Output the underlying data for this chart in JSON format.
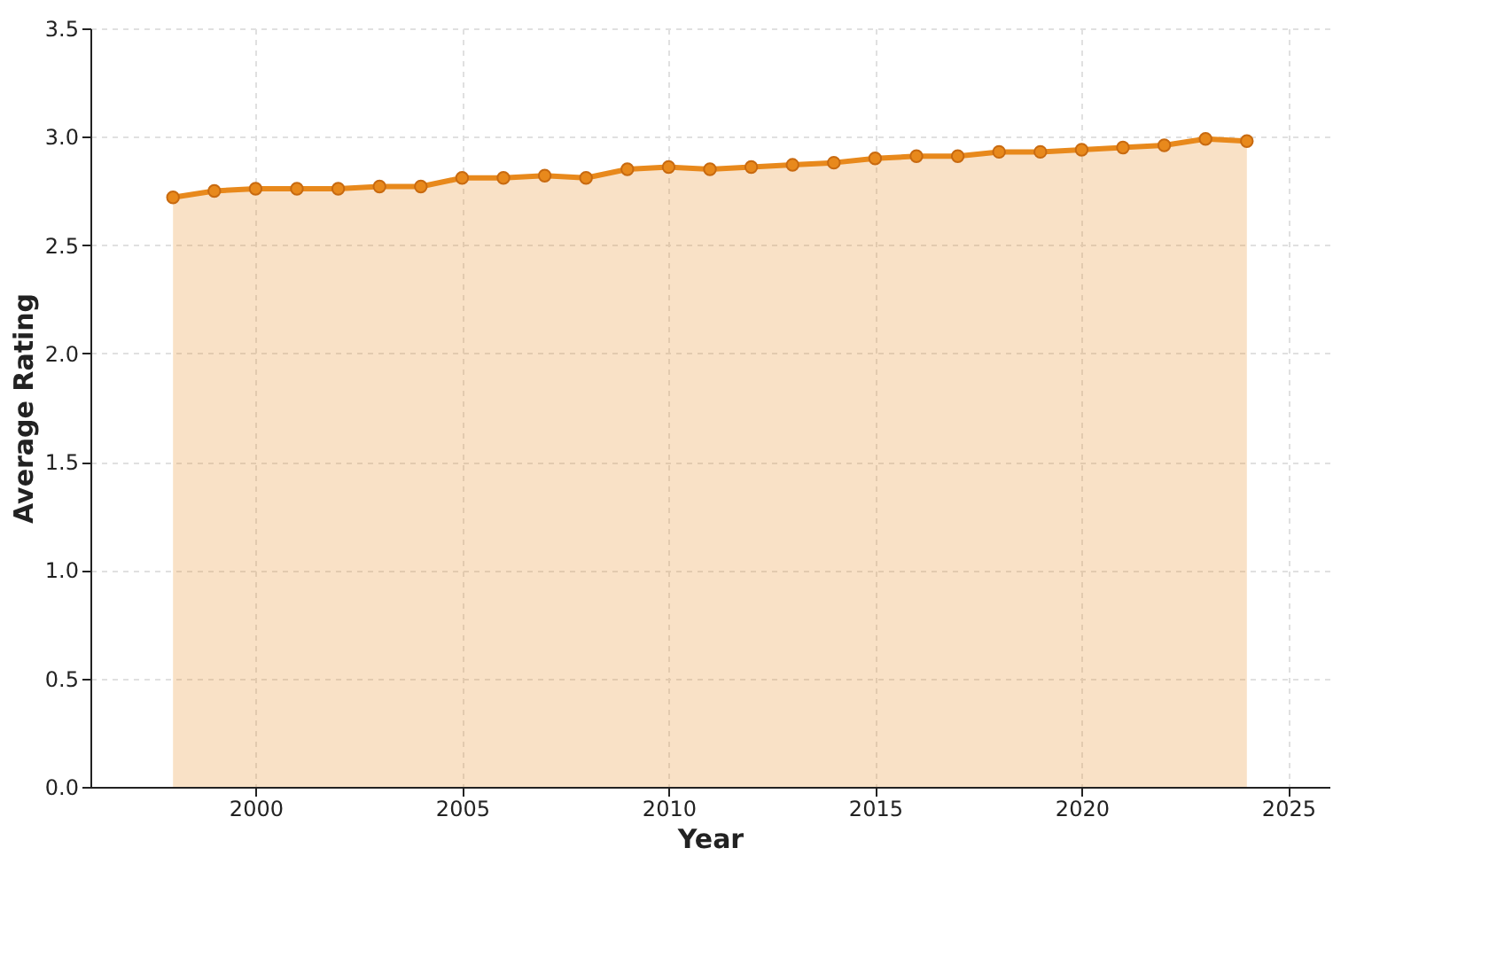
{
  "chart_data": {
    "type": "area",
    "xlabel": "Year",
    "ylabel": "Average Rating",
    "x": [
      1998,
      1999,
      2000,
      2001,
      2002,
      2003,
      2004,
      2005,
      2006,
      2007,
      2008,
      2009,
      2010,
      2011,
      2012,
      2013,
      2014,
      2015,
      2016,
      2017,
      2018,
      2019,
      2020,
      2021,
      2022,
      2023,
      2024
    ],
    "series": [
      {
        "color": "#e8891c",
        "values": [
          2.72,
          2.75,
          2.76,
          2.76,
          2.76,
          2.77,
          2.77,
          2.81,
          2.81,
          2.82,
          2.81,
          2.85,
          2.86,
          2.85,
          2.86,
          2.87,
          2.88,
          2.9,
          2.91,
          2.91,
          2.93,
          2.93,
          2.94,
          2.95,
          2.96,
          2.99,
          2.98
        ]
      }
    ],
    "xlim": [
      1996,
      2026
    ],
    "xticks": [
      2000,
      2005,
      2010,
      2015,
      2020,
      2025
    ],
    "ylim": [
      0,
      3.5
    ],
    "yticks": [
      {
        "value": 0,
        "label": "0.0"
      },
      0.5,
      {
        "value": 1,
        "label": "1.0"
      },
      1.5,
      {
        "value": 2,
        "label": "2.0"
      },
      2.5,
      {
        "value": 3,
        "label": "3.0"
      },
      3.5
    ],
    "grid": true,
    "marker": "circle",
    "line_style": "solid"
  }
}
